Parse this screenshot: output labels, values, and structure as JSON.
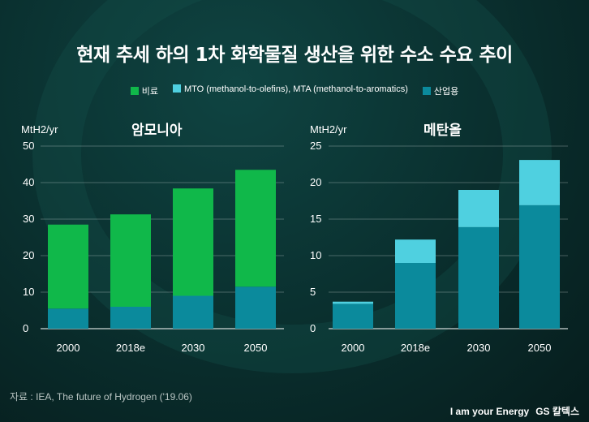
{
  "title": "현재 추세 하의 1차 화학물질 생산을 위한 수소 수요 추이",
  "legend": [
    {
      "label": "비료",
      "color": "#10b84a"
    },
    {
      "label": "MTO (methanol-to-olefins), MTA (methanol-to-aromatics)",
      "color": "#4fd0e0"
    },
    {
      "label": "산업용",
      "color": "#0b8a9c"
    }
  ],
  "source": "자료 : IEA, The future of Hydrogen ('19.06)",
  "brand": {
    "slogan": "I am your Energy",
    "logo": "GS 칼텍스"
  },
  "chart_data": [
    {
      "type": "bar",
      "stacked": true,
      "title": "암모니아",
      "ylabel": "MtH2/yr",
      "ylim": [
        0,
        50
      ],
      "yticks": [
        0,
        10,
        20,
        30,
        40,
        50
      ],
      "grid": true,
      "categories": [
        "2000",
        "2018e",
        "2030",
        "2050"
      ],
      "series": [
        {
          "name": "산업용",
          "color": "#0b8a9c",
          "values": [
            5.5,
            6,
            9,
            11.5
          ]
        },
        {
          "name": "비료",
          "color": "#10b84a",
          "values": [
            23,
            25.3,
            29.4,
            32
          ]
        }
      ]
    },
    {
      "type": "bar",
      "stacked": true,
      "title": "메탄올",
      "ylabel": "MtH2/yr",
      "ylim": [
        0,
        25
      ],
      "yticks": [
        0,
        5,
        10,
        15,
        20,
        25
      ],
      "grid": true,
      "categories": [
        "2000",
        "2018e",
        "2030",
        "2050"
      ],
      "series": [
        {
          "name": "산업용",
          "color": "#0b8a9c",
          "values": [
            3.4,
            9,
            13.9,
            16.9
          ]
        },
        {
          "name": "MTO (methanol-to-olefins), MTA (methanol-to-aromatics)",
          "color": "#4fd0e0",
          "values": [
            0.3,
            3.2,
            5.1,
            6.2
          ]
        }
      ]
    }
  ]
}
